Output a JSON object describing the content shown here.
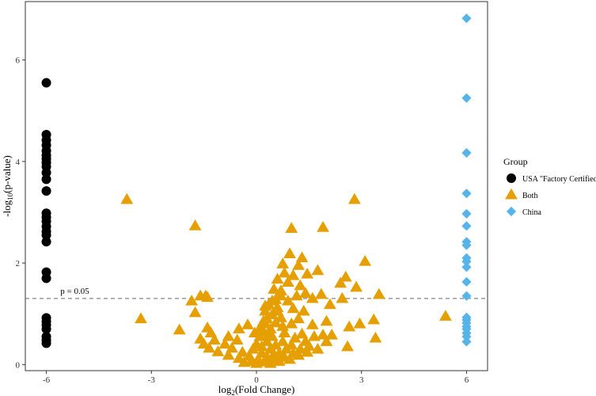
{
  "chart_data": {
    "type": "scatter",
    "title": "",
    "xlabel": "log2(Fold Change)",
    "ylabel": "-log10(p-value)",
    "xlim": [
      -6.6,
      6.6
    ],
    "ylim": [
      -0.12,
      7.15
    ],
    "x_ticks": [
      -6,
      -3,
      0,
      3,
      6
    ],
    "x_tick_labels": [
      "-6",
      "-3",
      "0",
      "3",
      "6"
    ],
    "y_ticks": [
      0,
      2,
      4,
      6
    ],
    "y_tick_labels": [
      "0",
      "2",
      "4",
      "6"
    ],
    "grid": false,
    "threshold": {
      "y": 1.30103,
      "label": "p = 0.05",
      "label_x": -5.6
    },
    "legend": {
      "title": "Group",
      "position": "right"
    },
    "series": [
      {
        "name": "USA \"Factory Certified\"",
        "marker": "circle",
        "color": "#000000",
        "points": [
          [
            -6,
            5.55
          ],
          [
            -6,
            4.53
          ],
          [
            -6,
            4.42
          ],
          [
            -6,
            4.32
          ],
          [
            -6,
            4.21
          ],
          [
            -6,
            4.12
          ],
          [
            -6,
            4.05
          ],
          [
            -6,
            3.98
          ],
          [
            -6,
            3.9
          ],
          [
            -6,
            3.78
          ],
          [
            -6,
            3.65
          ],
          [
            -6,
            3.42
          ],
          [
            -6,
            2.98
          ],
          [
            -6,
            2.9
          ],
          [
            -6,
            2.82
          ],
          [
            -6,
            2.72
          ],
          [
            -6,
            2.62
          ],
          [
            -6,
            2.55
          ],
          [
            -6,
            2.42
          ],
          [
            -6,
            1.82
          ],
          [
            -6,
            1.7
          ],
          [
            -6,
            0.92
          ],
          [
            -6,
            0.85
          ],
          [
            -6,
            0.78
          ],
          [
            -6,
            0.7
          ],
          [
            -6,
            0.55
          ],
          [
            -6,
            0.48
          ],
          [
            -6,
            0.42
          ]
        ]
      },
      {
        "name": "Both",
        "marker": "triangle",
        "color": "#E69F00",
        "points": [
          [
            -3.7,
            3.25
          ],
          [
            2.8,
            3.25
          ],
          [
            -1.75,
            2.73
          ],
          [
            1.9,
            2.7
          ],
          [
            1.0,
            2.68
          ],
          [
            0.95,
            2.18
          ],
          [
            1.3,
            2.1
          ],
          [
            3.1,
            2.03
          ],
          [
            1.2,
            1.95
          ],
          [
            0.75,
            1.98
          ],
          [
            1.75,
            1.85
          ],
          [
            0.8,
            1.8
          ],
          [
            1.05,
            1.75
          ],
          [
            1.45,
            1.78
          ],
          [
            2.55,
            1.72
          ],
          [
            0.6,
            1.68
          ],
          [
            2.4,
            1.6
          ],
          [
            0.9,
            1.62
          ],
          [
            1.25,
            1.55
          ],
          [
            2.85,
            1.52
          ],
          [
            0.5,
            1.48
          ],
          [
            1.85,
            1.38
          ],
          [
            3.5,
            1.38
          ],
          [
            1.4,
            1.4
          ],
          [
            0.7,
            1.45
          ],
          [
            -1.45,
            1.35
          ],
          [
            -1.6,
            1.35
          ],
          [
            -1.4,
            1.32
          ],
          [
            0.55,
            1.28
          ],
          [
            1.6,
            1.3
          ],
          [
            2.45,
            1.3
          ],
          [
            0.45,
            1.25
          ],
          [
            0.35,
            1.18
          ],
          [
            -1.85,
            1.25
          ],
          [
            1.05,
            1.1
          ],
          [
            2.1,
            1.18
          ],
          [
            0.6,
            1.12
          ],
          [
            0.25,
            1.05
          ],
          [
            -1.75,
            1.02
          ],
          [
            1.35,
            1.05
          ],
          [
            0.45,
            0.98
          ],
          [
            -3.3,
            0.9
          ],
          [
            0.3,
            0.9
          ],
          [
            0.7,
            0.92
          ],
          [
            1.2,
            0.9
          ],
          [
            2.0,
            0.85
          ],
          [
            2.95,
            0.8
          ],
          [
            3.35,
            0.88
          ],
          [
            5.4,
            0.95
          ],
          [
            0.25,
            0.8
          ],
          [
            0.55,
            0.82
          ],
          [
            1.0,
            0.8
          ],
          [
            1.6,
            0.78
          ],
          [
            -0.25,
            0.78
          ],
          [
            0.1,
            0.72
          ],
          [
            -1.4,
            0.72
          ],
          [
            -0.5,
            0.7
          ],
          [
            0.4,
            0.7
          ],
          [
            2.65,
            0.74
          ],
          [
            -2.2,
            0.68
          ],
          [
            -1.3,
            0.62
          ],
          [
            0.2,
            0.65
          ],
          [
            0.8,
            0.62
          ],
          [
            1.3,
            0.6
          ],
          [
            1.9,
            0.58
          ],
          [
            -0.8,
            0.55
          ],
          [
            0.1,
            0.55
          ],
          [
            0.45,
            0.55
          ],
          [
            1.1,
            0.52
          ],
          [
            1.65,
            0.55
          ],
          [
            2.15,
            0.58
          ],
          [
            3.4,
            0.52
          ],
          [
            -1.6,
            0.5
          ],
          [
            -1.2,
            0.48
          ],
          [
            -0.55,
            0.48
          ],
          [
            0.3,
            0.45
          ],
          [
            0.75,
            0.45
          ],
          [
            1.4,
            0.45
          ],
          [
            2.0,
            0.45
          ],
          [
            -1.5,
            0.4
          ],
          [
            -0.9,
            0.4
          ],
          [
            0.0,
            0.4
          ],
          [
            0.55,
            0.38
          ],
          [
            1.0,
            0.38
          ],
          [
            1.5,
            0.36
          ],
          [
            2.6,
            0.35
          ],
          [
            -1.35,
            0.32
          ],
          [
            -0.7,
            0.32
          ],
          [
            -0.1,
            0.3
          ],
          [
            0.4,
            0.3
          ],
          [
            0.85,
            0.3
          ],
          [
            1.25,
            0.3
          ],
          [
            1.75,
            0.3
          ],
          [
            -1.1,
            0.25
          ],
          [
            -0.4,
            0.24
          ],
          [
            0.15,
            0.22
          ],
          [
            0.65,
            0.22
          ],
          [
            1.05,
            0.22
          ],
          [
            1.45,
            0.24
          ],
          [
            -0.8,
            0.18
          ],
          [
            -0.2,
            0.16
          ],
          [
            0.3,
            0.15
          ],
          [
            0.8,
            0.14
          ],
          [
            1.2,
            0.18
          ],
          [
            -0.5,
            0.12
          ],
          [
            0.05,
            0.1
          ],
          [
            0.5,
            0.1
          ],
          [
            0.95,
            0.1
          ],
          [
            -0.15,
            0.06
          ],
          [
            0.25,
            0.05
          ],
          [
            0.65,
            0.06
          ],
          [
            0.0,
            0.02
          ],
          [
            0.4,
            0.02
          ],
          [
            -0.35,
            0.04
          ],
          [
            0.15,
            0.35
          ],
          [
            0.35,
            0.6
          ],
          [
            0.6,
            1.05
          ],
          [
            0.7,
            1.35
          ],
          [
            0.2,
            0.85
          ],
          [
            0.5,
            0.2
          ],
          [
            0.75,
            0.75
          ],
          [
            0.9,
            1.25
          ],
          [
            1.15,
            1.35
          ],
          [
            -0.05,
            0.62
          ],
          [
            0.25,
            1.15
          ]
        ]
      },
      {
        "name": "China",
        "marker": "diamond",
        "color": "#56B4E9",
        "points": [
          [
            6,
            6.82
          ],
          [
            6,
            5.25
          ],
          [
            6,
            4.17
          ],
          [
            6,
            3.37
          ],
          [
            6,
            2.97
          ],
          [
            6,
            2.73
          ],
          [
            6,
            2.42
          ],
          [
            6,
            2.35
          ],
          [
            6,
            2.1
          ],
          [
            6,
            2.03
          ],
          [
            6,
            1.92
          ],
          [
            6,
            1.63
          ],
          [
            6,
            1.35
          ],
          [
            6,
            0.93
          ],
          [
            6,
            0.88
          ],
          [
            6,
            0.82
          ],
          [
            6,
            0.75
          ],
          [
            6,
            0.7
          ],
          [
            6,
            0.62
          ],
          [
            6,
            0.55
          ],
          [
            6,
            0.45
          ]
        ]
      }
    ]
  }
}
